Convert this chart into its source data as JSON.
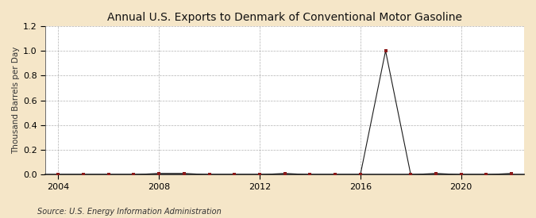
{
  "title": "Annual U.S. Exports to Denmark of Conventional Motor Gasoline",
  "ylabel": "Thousand Barrels per Day",
  "source": "Source: U.S. Energy Information Administration",
  "xlim": [
    2003.5,
    2022.5
  ],
  "ylim": [
    0,
    1.2
  ],
  "yticks": [
    0.0,
    0.2,
    0.4,
    0.6,
    0.8,
    1.0,
    1.2
  ],
  "xticks": [
    2004,
    2008,
    2012,
    2016,
    2020
  ],
  "outer_bg": "#f5e6c8",
  "plot_bg": "#ffffff",
  "grid_color": "#aaaaaa",
  "vline_color": "#aaaaaa",
  "years": [
    2004,
    2005,
    2006,
    2007,
    2008,
    2009,
    2010,
    2011,
    2012,
    2013,
    2014,
    2015,
    2016,
    2017,
    2018,
    2019,
    2020,
    2021,
    2022
  ],
  "values": [
    0.0,
    0.0,
    0.0,
    0.0,
    0.01,
    0.01,
    0.0,
    0.0,
    0.0,
    0.01,
    0.0,
    0.0,
    0.0,
    1.0,
    0.0,
    0.01,
    0.0,
    0.0,
    0.01
  ],
  "marker_color": "#8b1a1a",
  "line_color": "#1a1a1a",
  "line_width": 0.8,
  "marker_size": 3.0,
  "title_fontsize": 10,
  "label_fontsize": 7.5,
  "tick_fontsize": 8,
  "source_fontsize": 7
}
